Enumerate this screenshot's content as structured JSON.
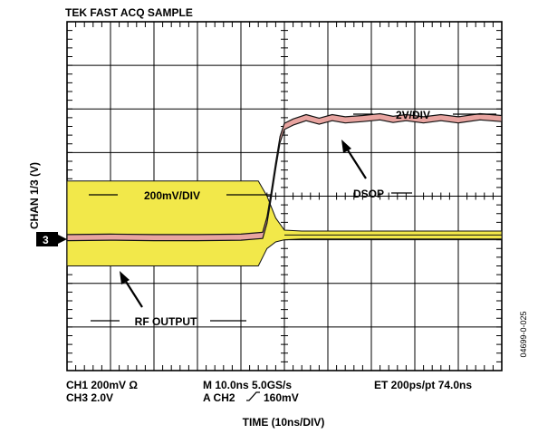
{
  "header": {
    "title": "TEK FAST ACQ SAMPLE"
  },
  "colors": {
    "rf_fill": "#f2e84a",
    "trace_fill": "#e8a4a0",
    "trace_edge": "#111111",
    "grid": "#000000"
  },
  "chart_data": {
    "type": "line",
    "title": "TEK FAST ACQ SAMPLE",
    "xlabel": "TIME (10ns/DIV)",
    "ylabel": "CHAN 1/3 (V)",
    "xlim": [
      0,
      10
    ],
    "ylim": [
      0,
      8
    ],
    "divisions": {
      "x": 10,
      "y": 8
    },
    "grid": true,
    "ground_marker": "3",
    "series": [
      {
        "name": "RF OUTPUT",
        "scale": "200mV/DIV",
        "kind": "envelope",
        "points": [
          {
            "x": 0,
            "top": 4.35,
            "bottom": 2.4
          },
          {
            "x": 1,
            "top": 4.35,
            "bottom": 2.4
          },
          {
            "x": 2,
            "top": 4.35,
            "bottom": 2.4
          },
          {
            "x": 3,
            "top": 4.35,
            "bottom": 2.4
          },
          {
            "x": 4,
            "top": 4.35,
            "bottom": 2.4
          },
          {
            "x": 4.4,
            "top": 4.35,
            "bottom": 2.4
          },
          {
            "x": 4.6,
            "top": 4.0,
            "bottom": 2.8
          },
          {
            "x": 4.8,
            "top": 3.5,
            "bottom": 2.95
          },
          {
            "x": 5.0,
            "top": 3.22,
            "bottom": 3.0
          },
          {
            "x": 5.4,
            "top": 3.2,
            "bottom": 3.02
          },
          {
            "x": 10,
            "top": 3.2,
            "bottom": 3.02
          }
        ]
      },
      {
        "name": "DSOP",
        "scale": "2V/DIV",
        "kind": "band",
        "width_div": 0.14,
        "points": [
          {
            "x": 0.0,
            "y": 3.05
          },
          {
            "x": 1.0,
            "y": 3.06
          },
          {
            "x": 2.0,
            "y": 3.05
          },
          {
            "x": 3.0,
            "y": 3.05
          },
          {
            "x": 4.0,
            "y": 3.06
          },
          {
            "x": 4.5,
            "y": 3.1
          },
          {
            "x": 4.6,
            "y": 3.45
          },
          {
            "x": 4.7,
            "y": 4.05
          },
          {
            "x": 4.8,
            "y": 4.7
          },
          {
            "x": 4.9,
            "y": 5.3
          },
          {
            "x": 5.0,
            "y": 5.6
          },
          {
            "x": 5.2,
            "y": 5.7
          },
          {
            "x": 5.5,
            "y": 5.8
          },
          {
            "x": 5.8,
            "y": 5.72
          },
          {
            "x": 6.1,
            "y": 5.8
          },
          {
            "x": 6.4,
            "y": 5.75
          },
          {
            "x": 6.8,
            "y": 5.78
          },
          {
            "x": 7.2,
            "y": 5.82
          },
          {
            "x": 7.5,
            "y": 5.76
          },
          {
            "x": 7.8,
            "y": 5.8
          },
          {
            "x": 8.2,
            "y": 5.75
          },
          {
            "x": 8.6,
            "y": 5.8
          },
          {
            "x": 9.0,
            "y": 5.75
          },
          {
            "x": 9.5,
            "y": 5.82
          },
          {
            "x": 10.0,
            "y": 5.78
          }
        ]
      }
    ],
    "annotations": {
      "scale_rf": "200mV/DIV",
      "scale_dsop": "2V/DIV",
      "label_dsop": "DSOP",
      "label_rf": "RF OUTPUT"
    },
    "readout": {
      "ch1": "CH1  200mV  Ω",
      "ch3": "CH3  2.0V",
      "timebase": "M 10.0ns 5.0GS/s",
      "trigger_prefix": "A CH2",
      "trigger_level": "160mV",
      "et": "ET 200ps/pt 74.0ns"
    },
    "figure_id": "04699-0-025"
  }
}
